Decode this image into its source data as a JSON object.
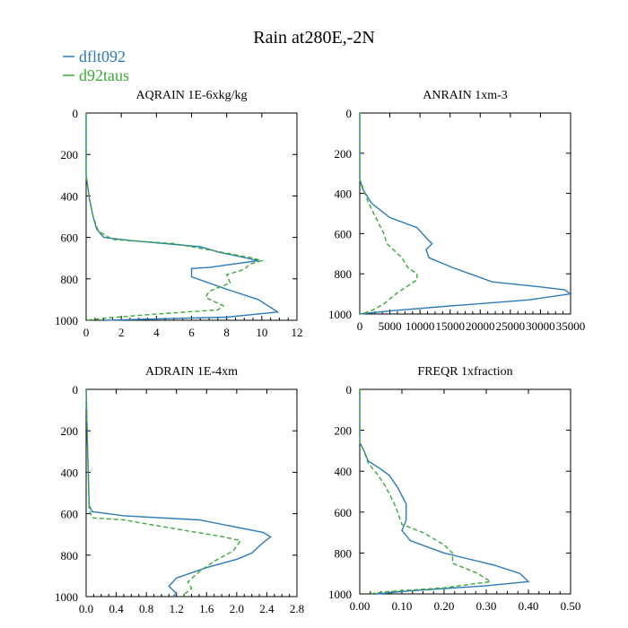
{
  "figure": {
    "title": "Rain at280E,-2N"
  },
  "legend": [
    {
      "name": "dflt092",
      "color": "#2b7bba",
      "dash": "solid"
    },
    {
      "name": "d92taus",
      "color": "#3aaa35",
      "dash": "dashed"
    }
  ],
  "chart_data": [
    {
      "type": "line",
      "title": "AQRAIN  1E-6xkg/kg",
      "xlim": [
        0,
        12
      ],
      "ylim": [
        1000,
        0
      ],
      "xticks": [
        0,
        2,
        4,
        6,
        8,
        10,
        12
      ],
      "xtick_labels": [
        "0",
        "2",
        "4",
        "6",
        "8",
        "10",
        "12"
      ],
      "yticks": [
        0,
        200,
        400,
        600,
        800,
        1000
      ],
      "ytick_labels": [
        "0",
        "200",
        "400",
        "600",
        "800",
        "1000"
      ],
      "series": [
        {
          "name": "dflt092",
          "points": [
            [
              0,
              0
            ],
            [
              0,
              300
            ],
            [
              0.2,
              420
            ],
            [
              0.4,
              500
            ],
            [
              0.6,
              560
            ],
            [
              1,
              600
            ],
            [
              2.5,
              615
            ],
            [
              6.5,
              645
            ],
            [
              7.5,
              670
            ],
            [
              9.8,
              712
            ],
            [
              7,
              745
            ],
            [
              6,
              750
            ],
            [
              6,
              790
            ],
            [
              8,
              850
            ],
            [
              9.8,
              900
            ],
            [
              10.9,
              960
            ],
            [
              8,
              985
            ],
            [
              1,
              1000
            ]
          ]
        },
        {
          "name": "d92taus",
          "points": [
            [
              0,
              0
            ],
            [
              0,
              300
            ],
            [
              0.2,
              420
            ],
            [
              0.4,
              500
            ],
            [
              0.7,
              570
            ],
            [
              1.5,
              610
            ],
            [
              5,
              630
            ],
            [
              7,
              660
            ],
            [
              9.5,
              700
            ],
            [
              10,
              712
            ],
            [
              9.3,
              730
            ],
            [
              9,
              755
            ],
            [
              8,
              780
            ],
            [
              8.2,
              820
            ],
            [
              7,
              860
            ],
            [
              6.8,
              890
            ],
            [
              7.8,
              930
            ],
            [
              7.5,
              950
            ],
            [
              4,
              970
            ],
            [
              1,
              990
            ],
            [
              0,
              1000
            ]
          ]
        }
      ]
    },
    {
      "type": "line",
      "title": "ANRAIN  1xm-3",
      "xlim": [
        0,
        35000
      ],
      "ylim": [
        1000,
        0
      ],
      "xticks": [
        0,
        5000,
        10000,
        15000,
        20000,
        25000,
        30000,
        35000
      ],
      "xtick_labels": [
        "0",
        "5000",
        "10000",
        "15000",
        "20000",
        "25000",
        "30000",
        "35000"
      ],
      "yticks": [
        0,
        200,
        400,
        600,
        800,
        1000
      ],
      "ytick_labels": [
        "0",
        "200",
        "400",
        "600",
        "800",
        "1000"
      ],
      "series": [
        {
          "name": "dflt092",
          "points": [
            [
              0,
              0
            ],
            [
              0,
              330
            ],
            [
              500,
              380
            ],
            [
              2000,
              450
            ],
            [
              5000,
              520
            ],
            [
              9500,
              570
            ],
            [
              11000,
              620
            ],
            [
              12000,
              650
            ],
            [
              11000,
              680
            ],
            [
              11500,
              720
            ],
            [
              15500,
              770
            ],
            [
              22000,
              840
            ],
            [
              30000,
              865
            ],
            [
              34000,
              880
            ],
            [
              35000,
              900
            ],
            [
              28000,
              930
            ],
            [
              15000,
              960
            ],
            [
              5000,
              985
            ],
            [
              0,
              1000
            ]
          ]
        },
        {
          "name": "d92taus",
          "points": [
            [
              0,
              0
            ],
            [
              0,
              330
            ],
            [
              500,
              370
            ],
            [
              1500,
              450
            ],
            [
              3000,
              540
            ],
            [
              4000,
              600
            ],
            [
              4500,
              650
            ],
            [
              7000,
              720
            ],
            [
              8000,
              770
            ],
            [
              9500,
              800
            ],
            [
              9500,
              830
            ],
            [
              8000,
              860
            ],
            [
              6000,
              900
            ],
            [
              4000,
              950
            ],
            [
              1500,
              990
            ],
            [
              0,
              1000
            ]
          ]
        }
      ]
    },
    {
      "type": "line",
      "title": "ADRAIN  1E-4xm",
      "xlim": [
        0,
        2.8
      ],
      "ylim": [
        1000,
        0
      ],
      "xticks": [
        0.0,
        0.4,
        0.8,
        1.2,
        1.6,
        2.0,
        2.4,
        2.8
      ],
      "xtick_labels": [
        "0.0",
        "0.4",
        "0.8",
        "1.2",
        "1.6",
        "2.0",
        "2.4",
        "2.8"
      ],
      "yticks": [
        0,
        200,
        400,
        600,
        800,
        1000
      ],
      "ytick_labels": [
        "0",
        "200",
        "400",
        "600",
        "800",
        "1000"
      ],
      "series": [
        {
          "name": "dflt092",
          "points": [
            [
              0,
              0
            ],
            [
              0.02,
              300
            ],
            [
              0.04,
              560
            ],
            [
              0.08,
              590
            ],
            [
              0.5,
              610
            ],
            [
              1.5,
              630
            ],
            [
              2.35,
              690
            ],
            [
              2.45,
              712
            ],
            [
              2.35,
              740
            ],
            [
              2.2,
              790
            ],
            [
              2.0,
              820
            ],
            [
              1.6,
              860
            ],
            [
              1.2,
              910
            ],
            [
              1.1,
              950
            ],
            [
              1.2,
              985
            ],
            [
              1.15,
              1000
            ]
          ]
        },
        {
          "name": "d92taus",
          "points": [
            [
              0,
              0
            ],
            [
              0.02,
              300
            ],
            [
              0.04,
              580
            ],
            [
              0.08,
              620
            ],
            [
              0.5,
              630
            ],
            [
              1.3,
              680
            ],
            [
              1.8,
              710
            ],
            [
              2.05,
              730
            ],
            [
              1.95,
              780
            ],
            [
              1.7,
              830
            ],
            [
              1.5,
              880
            ],
            [
              1.35,
              930
            ],
            [
              1.4,
              960
            ],
            [
              1.3,
              990
            ],
            [
              1.3,
              1000
            ]
          ]
        }
      ]
    },
    {
      "type": "line",
      "title": "FREQR  1xfraction",
      "xlim": [
        0,
        0.5
      ],
      "ylim": [
        1000,
        0
      ],
      "xticks": [
        0.0,
        0.1,
        0.2,
        0.3,
        0.4,
        0.5
      ],
      "xtick_labels": [
        "0.00",
        "0.10",
        "0.20",
        "0.30",
        "0.40",
        "0.50"
      ],
      "yticks": [
        0,
        200,
        400,
        600,
        800,
        1000
      ],
      "ytick_labels": [
        "0",
        "200",
        "400",
        "600",
        "800",
        "1000"
      ],
      "series": [
        {
          "name": "dflt092",
          "points": [
            [
              0,
              0
            ],
            [
              0,
              260
            ],
            [
              0.01,
              300
            ],
            [
              0.02,
              350
            ],
            [
              0.05,
              390
            ],
            [
              0.07,
              420
            ],
            [
              0.09,
              480
            ],
            [
              0.11,
              560
            ],
            [
              0.11,
              640
            ],
            [
              0.1,
              690
            ],
            [
              0.12,
              740
            ],
            [
              0.2,
              800
            ],
            [
              0.32,
              860
            ],
            [
              0.38,
              900
            ],
            [
              0.4,
              940
            ],
            [
              0.3,
              960
            ],
            [
              0.12,
              985
            ],
            [
              0.04,
              1000
            ]
          ]
        },
        {
          "name": "d92taus",
          "points": [
            [
              0,
              0
            ],
            [
              0,
              260
            ],
            [
              0.01,
              300
            ],
            [
              0.02,
              360
            ],
            [
              0.04,
              410
            ],
            [
              0.06,
              470
            ],
            [
              0.08,
              550
            ],
            [
              0.09,
              600
            ],
            [
              0.1,
              660
            ],
            [
              0.15,
              700
            ],
            [
              0.2,
              760
            ],
            [
              0.22,
              800
            ],
            [
              0.22,
              850
            ],
            [
              0.28,
              900
            ],
            [
              0.31,
              940
            ],
            [
              0.2,
              970
            ],
            [
              0.06,
              990
            ],
            [
              0.02,
              1000
            ]
          ]
        }
      ]
    }
  ]
}
